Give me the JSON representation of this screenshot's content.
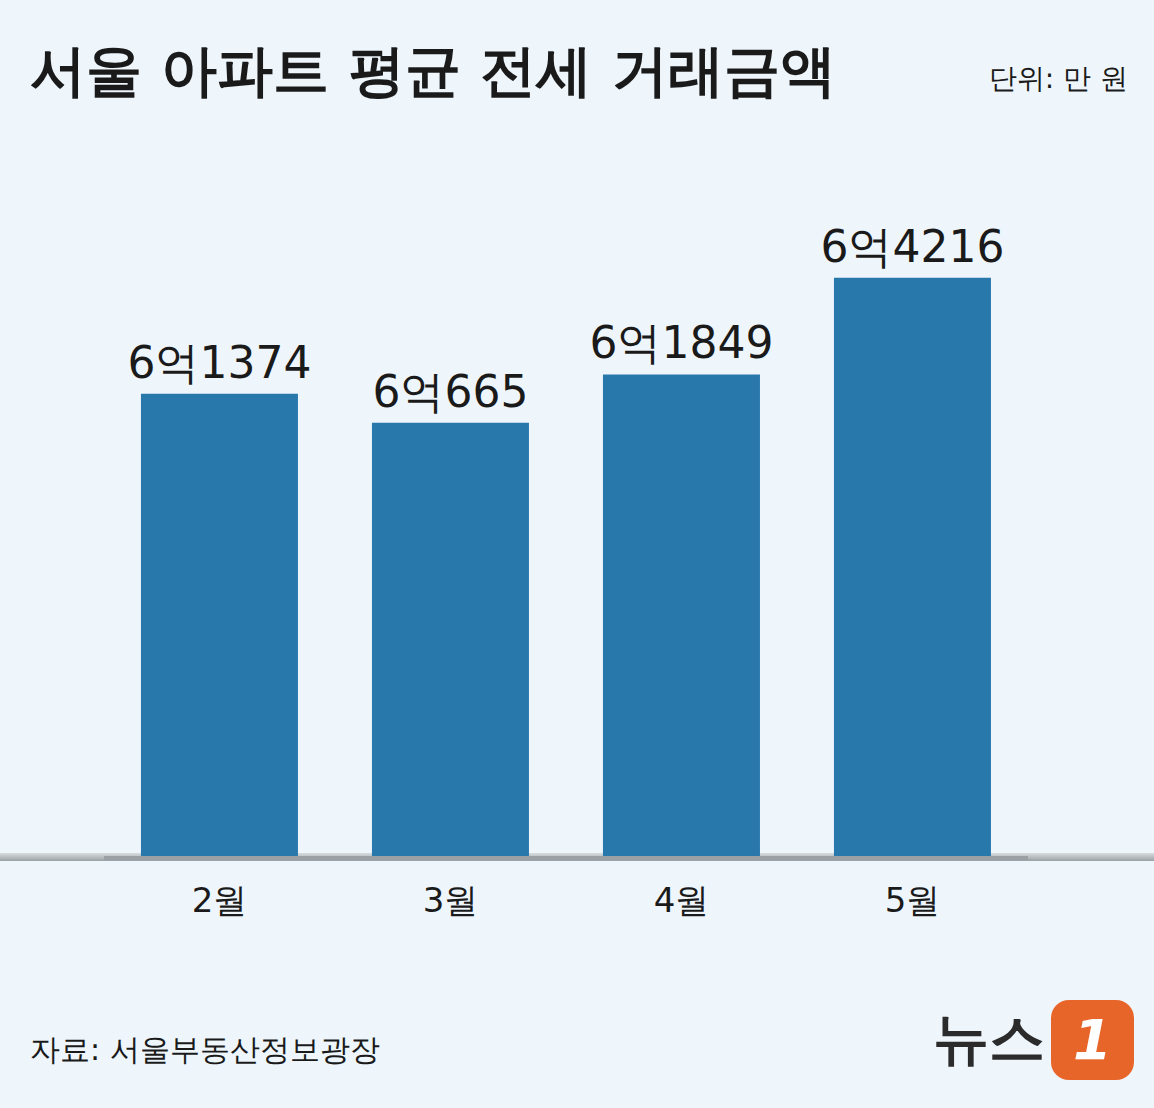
{
  "chart_data": {
    "type": "bar",
    "title": "서울 아파트 평균 전세 거래금액",
    "subtitle": "단위: 만 원",
    "categories": [
      "2월",
      "3월",
      "4월",
      "5월"
    ],
    "values": [
      61374,
      60665,
      61849,
      64216
    ],
    "value_labels": [
      "6억1374",
      "6억665",
      "6억1849",
      "6억4216"
    ],
    "data_labels": true,
    "color": "#2878ac",
    "ylim": [
      50000,
      66000
    ],
    "tick_labels": "x",
    "grid": false,
    "source": "자료: 서울부동산정보광장",
    "brand": [
      "뉴스",
      "1"
    ]
  }
}
